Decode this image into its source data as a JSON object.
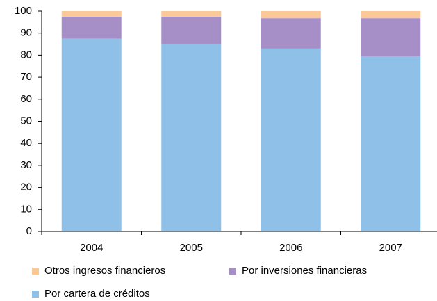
{
  "chart_data": {
    "type": "stacked_bar",
    "categories": [
      "2004",
      "2005",
      "2006",
      "2007"
    ],
    "series": [
      {
        "name": "Otros ingresos financieros",
        "color": "#fbc997",
        "values": [
          2.5,
          2.5,
          3.2,
          3.2
        ]
      },
      {
        "name": "Por inversiones  financieras",
        "color": "#a68fc7",
        "values": [
          10,
          12.6,
          13.8,
          17.3
        ]
      },
      {
        "name": "Por cartera de créditos",
        "color": "#8fc1e8",
        "values": [
          87.5,
          84.9,
          83,
          79.5
        ]
      }
    ],
    "ylim": [
      0,
      100
    ],
    "yticks": [
      0,
      10,
      20,
      30,
      40,
      50,
      60,
      70,
      80,
      90,
      100
    ],
    "grid": false
  }
}
